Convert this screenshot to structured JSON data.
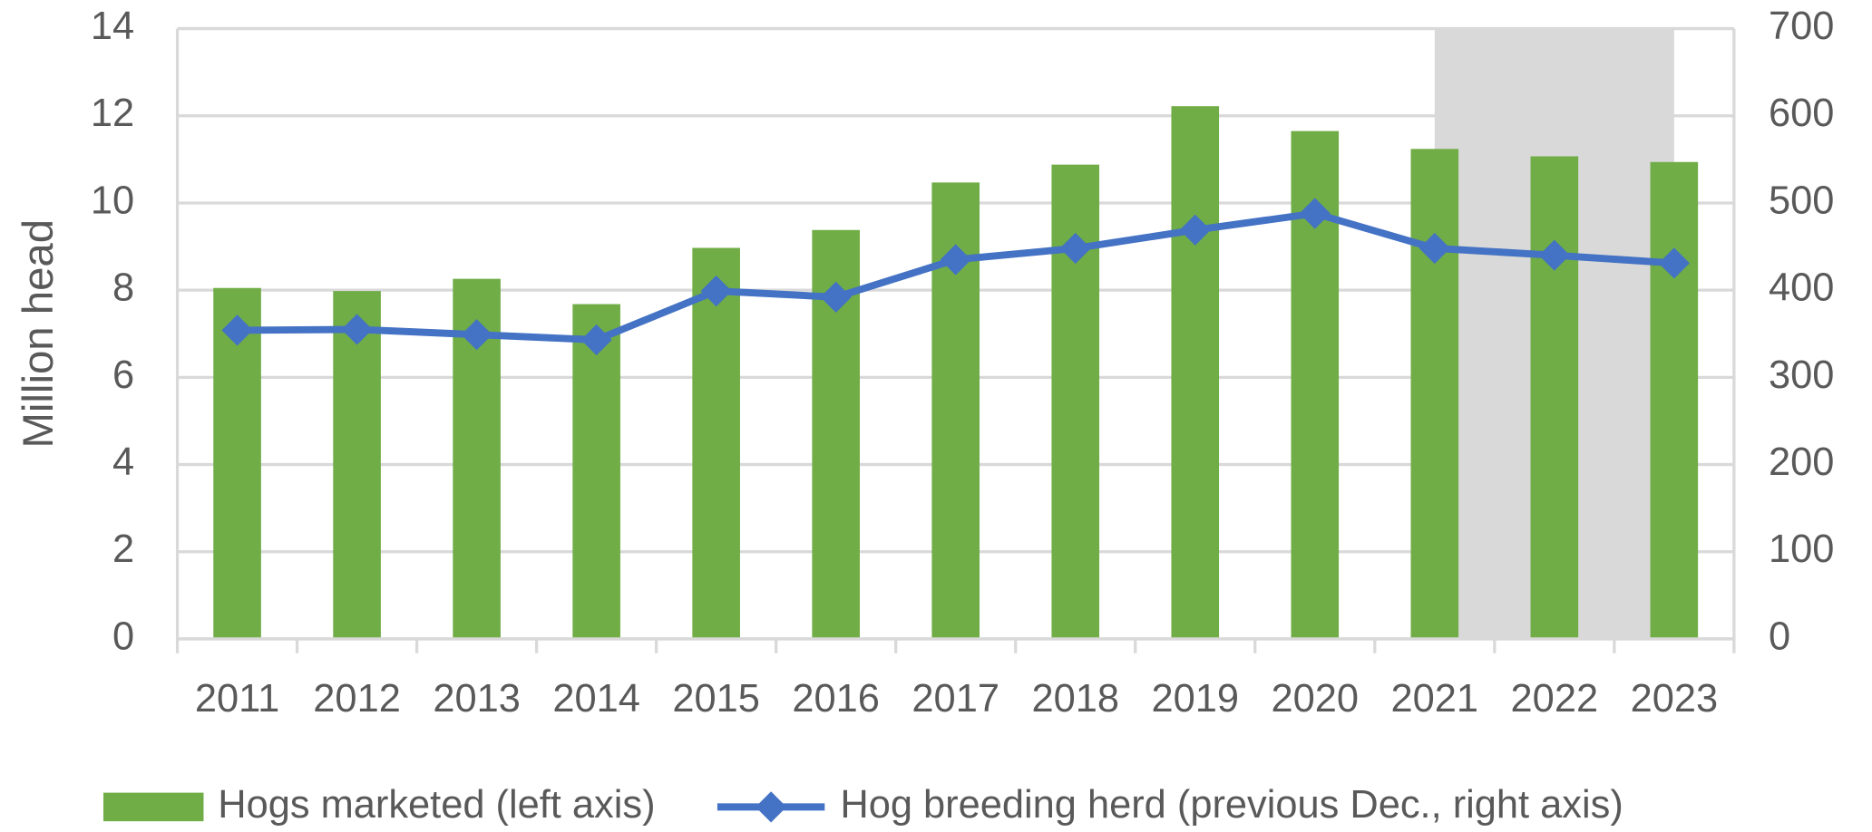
{
  "chart_data": {
    "type": "bar_line",
    "categories": [
      "2011",
      "2012",
      "2013",
      "2014",
      "2015",
      "2016",
      "2017",
      "2018",
      "2019",
      "2020",
      "2021",
      "2022",
      "2023"
    ],
    "series": [
      {
        "name": "Hogs marketed (left axis)",
        "type": "bar",
        "color": "#70ad47",
        "axis": "y",
        "values": [
          8.05,
          7.98,
          8.26,
          7.68,
          8.97,
          9.38,
          10.47,
          10.88,
          12.22,
          11.65,
          11.24,
          11.07,
          10.94
        ]
      },
      {
        "name": "Hog breeding herd (previous Dec., right axis)",
        "type": "line",
        "color": "#4472c4",
        "axis": "y2",
        "values": [
          354,
          355,
          349,
          343,
          399,
          392,
          435,
          448,
          469,
          488,
          448,
          440,
          431
        ]
      }
    ],
    "ylabel": "Million head",
    "ylim": [
      0,
      14
    ],
    "yticks": [
      0,
      2,
      4,
      6,
      8,
      10,
      12,
      14
    ],
    "y2lim": [
      0,
      700
    ],
    "y2ticks": [
      0,
      100,
      200,
      300,
      400,
      500,
      600,
      700
    ],
    "grid": true,
    "shade": {
      "from": "2021",
      "to": "2023",
      "color": "#d9d9d9"
    },
    "legend": "bottom"
  }
}
